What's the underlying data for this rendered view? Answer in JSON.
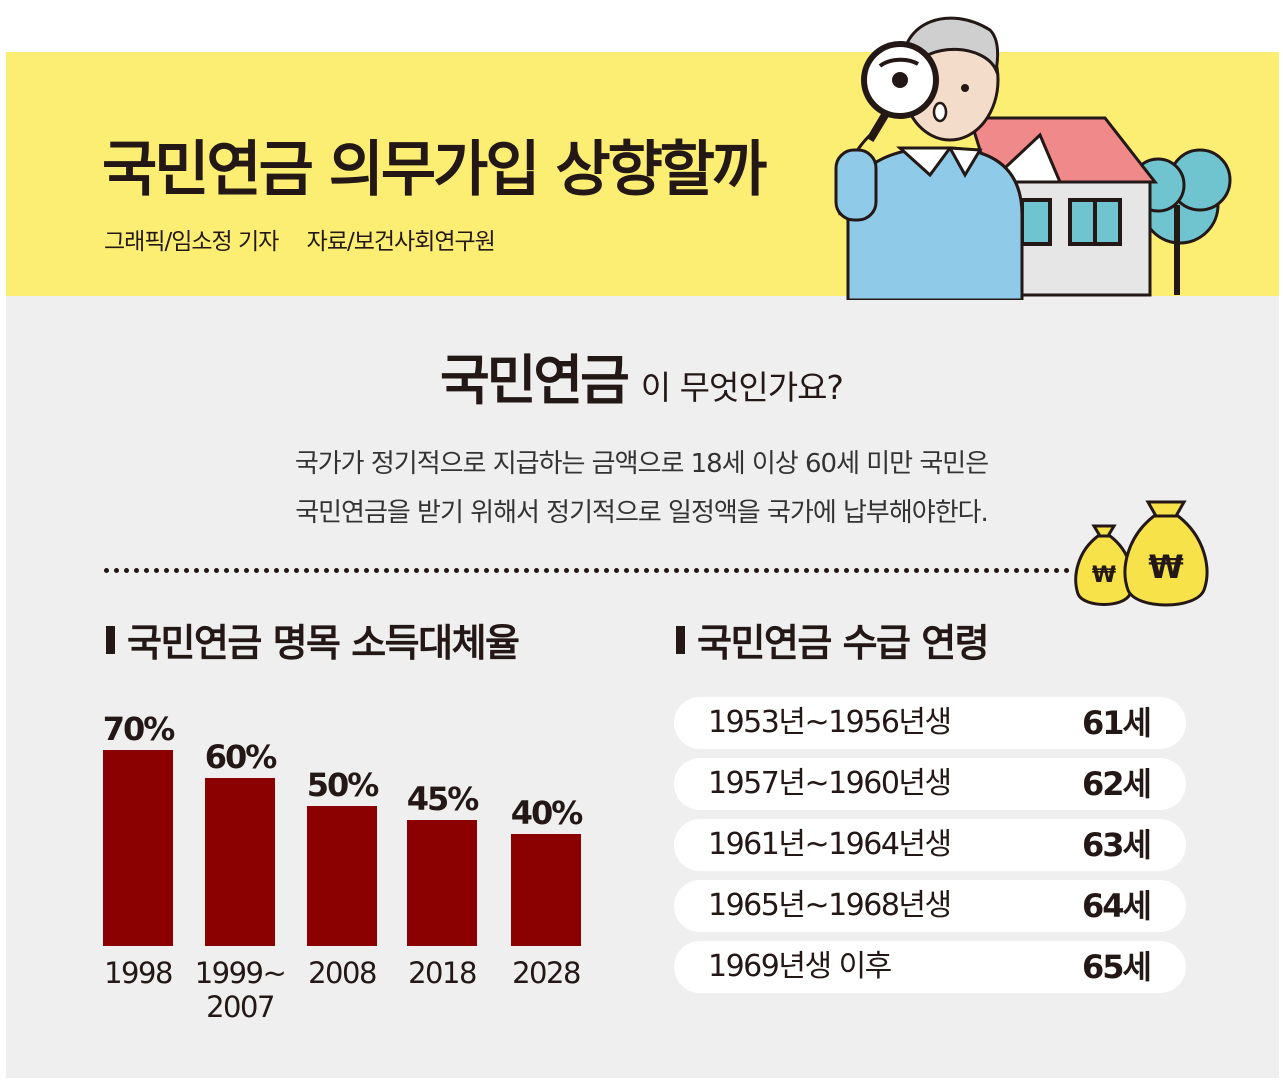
{
  "header": {
    "title": "국민연금 의무가입 상향할까",
    "credit_graphic": "그래픽/임소정 기자",
    "credit_source": "자료/보건사회연구원"
  },
  "intro": {
    "heading_bold": "국민연금",
    "heading_rest": "이 무엇인가요?",
    "description_line1": "국가가 정기적으로 지급하는 금액으로 18세 이상 60세 미만 국민은",
    "description_line2": "국민연금을 받기 위해서 정기적으로 일정액을 국가에 납부해야한다."
  },
  "icons": {
    "money_bag_symbol": "₩",
    "money_bag_icon": "money-bag-icon",
    "illustration": "elderly-man-magnifier-house-illustration"
  },
  "colors": {
    "banner": "#fcee73",
    "background": "#efefef",
    "bar": "#8b0000",
    "text": "#231815",
    "money_bag": "#f7e24a"
  },
  "sections": {
    "replacement_rate_title": "국민연금 명목 소득대체율",
    "pension_age_title": "국민연금 수급 연령"
  },
  "chart_data": {
    "type": "bar",
    "title": "국민연금 명목 소득대체율",
    "categories": [
      "1998",
      "1999~\n2007",
      "2008",
      "2018",
      "2028"
    ],
    "values": [
      70,
      60,
      50,
      45,
      40
    ],
    "value_labels": [
      "70%",
      "60%",
      "50%",
      "45%",
      "40%"
    ],
    "ylim": [
      0,
      75
    ],
    "grid": false,
    "legend": "none"
  },
  "pension_ages": [
    {
      "range": "1953년~1956년생",
      "age": "61세"
    },
    {
      "range": "1957년~1960년생",
      "age": "62세"
    },
    {
      "range": "1961년~1964년생",
      "age": "63세"
    },
    {
      "range": "1965년~1968년생",
      "age": "64세"
    },
    {
      "range": "1969년생 이후",
      "age": "65세"
    }
  ]
}
